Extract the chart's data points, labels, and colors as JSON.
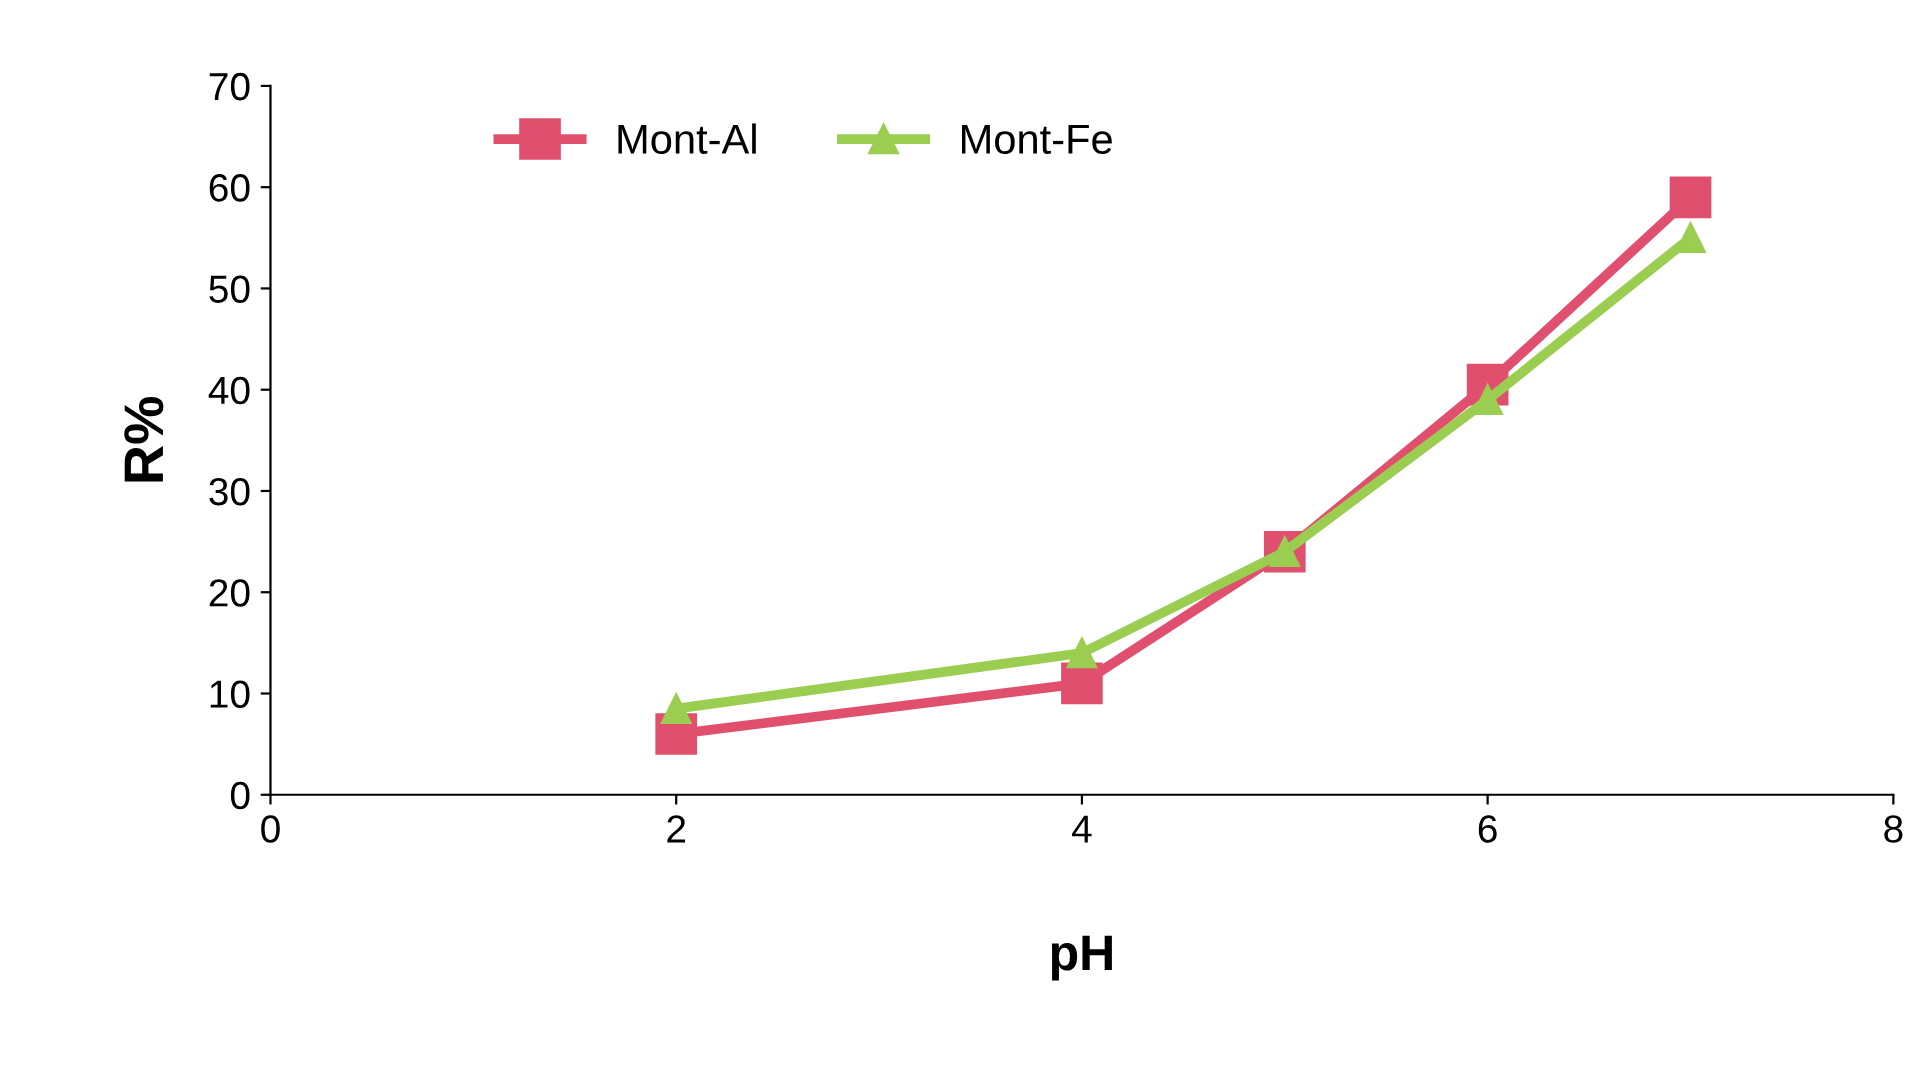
{
  "chart_data": {
    "type": "line",
    "xlabel": "pH",
    "ylabel": "R%",
    "x": [
      2,
      4,
      5,
      6,
      7
    ],
    "series": [
      {
        "name": "Mont-Al",
        "color": "#e0506e",
        "marker": "square",
        "values": [
          6,
          11,
          24,
          40.5,
          59
        ]
      },
      {
        "name": "Mont-Fe",
        "color": "#9acd50",
        "marker": "triangle",
        "values": [
          8.5,
          14,
          24,
          39,
          55
        ]
      }
    ],
    "xlim": [
      0,
      8
    ],
    "xticks": [
      0,
      2,
      4,
      6,
      8
    ],
    "ylim": [
      0,
      70
    ],
    "yticks": [
      0,
      10,
      20,
      30,
      40,
      50,
      60,
      70
    ],
    "grid": false,
    "legend": "top",
    "line_style": "solid"
  }
}
